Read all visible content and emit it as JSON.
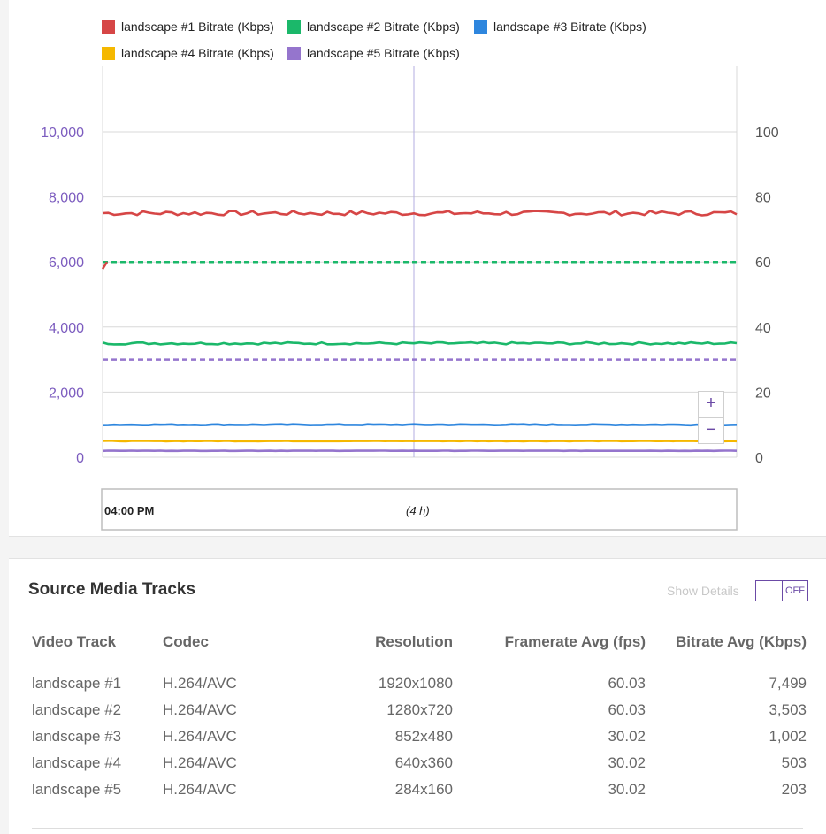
{
  "chart_data": {
    "type": "line",
    "legend": [
      {
        "name": "landscape #1 Bitrate (Kbps)",
        "color": "#d64646"
      },
      {
        "name": "landscape #2 Bitrate (Kbps)",
        "color": "#1bb86a"
      },
      {
        "name": "landscape #3 Bitrate (Kbps)",
        "color": "#2e86de"
      },
      {
        "name": "landscape #4 Bitrate (Kbps)",
        "color": "#f5b800"
      },
      {
        "name": "landscape #5 Bitrate (Kbps)",
        "color": "#9575cd"
      }
    ],
    "left_axis": {
      "ticks": [
        "0",
        "2,000",
        "4,000",
        "6,000",
        "8,000",
        "10,000"
      ],
      "min": 0,
      "max": 12000
    },
    "right_axis": {
      "ticks": [
        "0",
        "20",
        "40",
        "60",
        "80",
        "100"
      ],
      "min": 0,
      "max": 120
    },
    "series": [
      {
        "name": "landscape #1 Bitrate (Kbps)",
        "axis": "left",
        "color": "#d64646",
        "base": 7500,
        "jitter": 70,
        "values_summary": 7499
      },
      {
        "name": "landscape #2 Bitrate (Kbps)",
        "axis": "left",
        "color": "#1bb86a",
        "base": 3500,
        "jitter": 35,
        "values_summary": 3503
      },
      {
        "name": "landscape #3 Bitrate (Kbps)",
        "axis": "left",
        "color": "#2e86de",
        "base": 1000,
        "jitter": 15,
        "values_summary": 1002
      },
      {
        "name": "landscape #4 Bitrate (Kbps)",
        "axis": "left",
        "color": "#f5b800",
        "base": 500,
        "jitter": 8,
        "values_summary": 503
      },
      {
        "name": "landscape #5 Bitrate (Kbps)",
        "axis": "left",
        "color": "#9575cd",
        "base": 200,
        "jitter": 4,
        "values_summary": 203
      }
    ],
    "framerate_series": [
      {
        "color": "#d64646",
        "value": 60,
        "axis": "right",
        "style": "dashed"
      },
      {
        "color": "#1bb86a",
        "value": 60,
        "axis": "right",
        "style": "dashed"
      },
      {
        "color": "#9575cd",
        "value": 30,
        "axis": "right",
        "style": "dashed"
      }
    ],
    "navigator": {
      "start_label": "04:00 PM",
      "range_label": "(4 h)"
    },
    "zoom": {
      "in_label": "+",
      "out_label": "−"
    }
  },
  "tracks": {
    "title": "Source Media Tracks",
    "show_details_label": "Show Details",
    "toggle_state": "OFF",
    "columns": [
      "Video Track",
      "Codec",
      "Resolution",
      "Framerate Avg (fps)",
      "Bitrate Avg (Kbps)"
    ],
    "rows": [
      [
        "landscape #1",
        "H.264/AVC",
        "1920x1080",
        "60.03",
        "7,499"
      ],
      [
        "landscape #2",
        "H.264/AVC",
        "1280x720",
        "60.03",
        "3,503"
      ],
      [
        "landscape #3",
        "H.264/AVC",
        "852x480",
        "30.02",
        "1,002"
      ],
      [
        "landscape #4",
        "H.264/AVC",
        "640x360",
        "30.02",
        "503"
      ],
      [
        "landscape #5",
        "H.264/AVC",
        "284x160",
        "30.02",
        "203"
      ]
    ]
  }
}
